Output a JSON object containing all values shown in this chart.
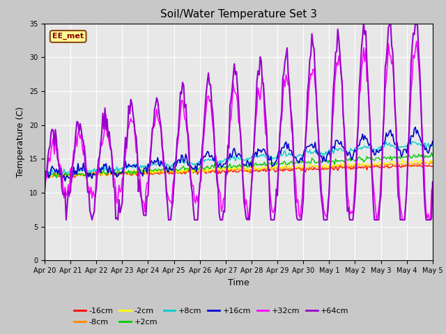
{
  "title": "Soil/Water Temperature Set 3",
  "xlabel": "Time",
  "ylabel": "Temperature (C)",
  "ylim": [
    0,
    35
  ],
  "yticks": [
    0,
    5,
    10,
    15,
    20,
    25,
    30,
    35
  ],
  "fig_bg_color": "#c8c8c8",
  "plot_bg_color": "#e8e8e8",
  "annotation_text": "EE_met",
  "annotation_box_color": "#ffff99",
  "annotation_border_color": "#8b4513",
  "series_colors": {
    "-16cm": "#ff0000",
    "-8cm": "#ff8800",
    "-2cm": "#ffff00",
    "+2cm": "#00cc00",
    "+8cm": "#00cccc",
    "+16cm": "#0000cc",
    "+32cm": "#ff00ff",
    "+64cm": "#9900cc"
  },
  "x_tick_labels": [
    "Apr 20",
    "Apr 21",
    "Apr 22",
    "Apr 23",
    "Apr 24",
    "Apr 25",
    "Apr 26",
    "Apr 27",
    "Apr 28",
    "Apr 29",
    "Apr 30",
    "May 1",
    "May 2",
    "May 3",
    "May 4",
    "May 5"
  ],
  "n_points": 361
}
